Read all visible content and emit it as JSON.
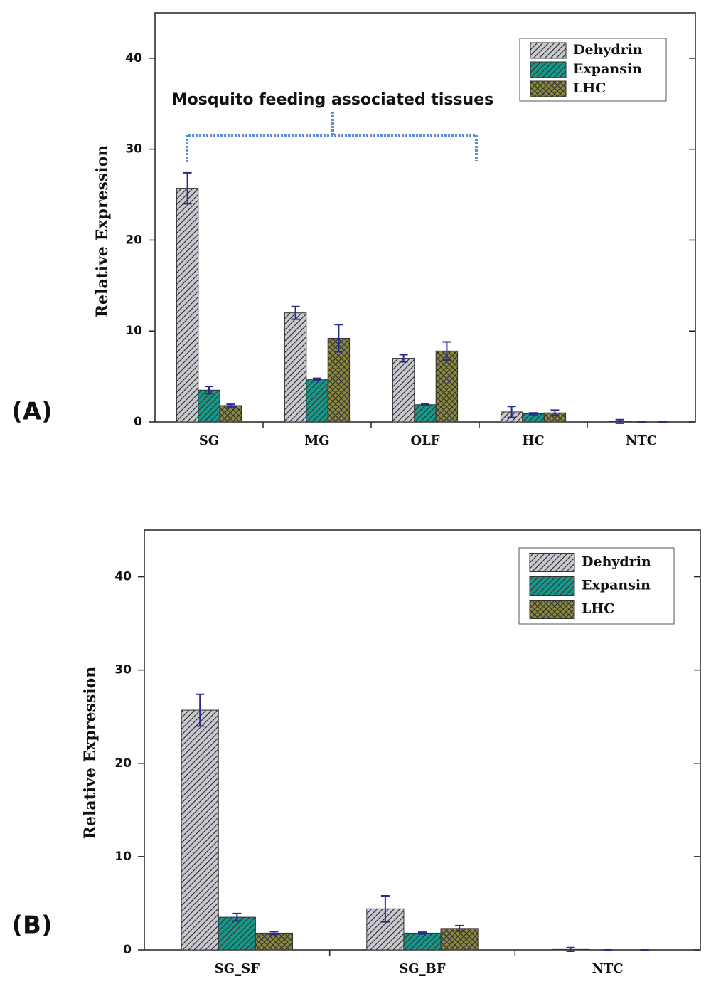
{
  "chart_data": [
    {
      "type": "bar",
      "label": "(A)",
      "ylabel": "Relative Expression",
      "annotation": "Mosquito feeding associated tissues",
      "categories": [
        "SG",
        "MG",
        "OLF",
        "HC",
        "NTC"
      ],
      "series": [
        {
          "name": "Dehydrin",
          "color": "#c9c9d1",
          "hatch": "diagonal",
          "values": [
            25.7,
            12.0,
            7.0,
            1.1,
            0.05
          ],
          "errors": [
            1.7,
            0.7,
            0.4,
            0.6,
            0.2
          ]
        },
        {
          "name": "Expansin",
          "color": "#17998a",
          "hatch": "diagonal",
          "values": [
            3.5,
            4.7,
            1.9,
            0.9,
            0
          ],
          "errors": [
            0.4,
            0.1,
            0.1,
            0.1,
            0
          ]
        },
        {
          "name": "LHC",
          "color": "#8c8a3c",
          "hatch": "cross",
          "values": [
            1.8,
            9.2,
            7.8,
            1.0,
            0
          ],
          "errors": [
            0.15,
            1.5,
            1.0,
            0.3,
            0
          ]
        }
      ],
      "ylim": [
        0,
        45
      ],
      "yticks": [
        0,
        10,
        20,
        30,
        40
      ],
      "legend": "upper right"
    },
    {
      "type": "bar",
      "label": "(B)",
      "ylabel": "Relative Expression",
      "categories": [
        "SG_SF",
        "SG_BF",
        "NTC"
      ],
      "series": [
        {
          "name": "Dehydrin",
          "color": "#c9c9d1",
          "hatch": "diagonal",
          "values": [
            25.7,
            4.4,
            0.05
          ],
          "errors": [
            1.7,
            1.4,
            0.2
          ]
        },
        {
          "name": "Expansin",
          "color": "#17998a",
          "hatch": "diagonal",
          "values": [
            3.5,
            1.8,
            0
          ],
          "errors": [
            0.4,
            0.1,
            0
          ]
        },
        {
          "name": "LHC",
          "color": "#8c8a3c",
          "hatch": "cross",
          "values": [
            1.8,
            2.3,
            0
          ],
          "errors": [
            0.15,
            0.3,
            0
          ]
        }
      ],
      "ylim": [
        0,
        45
      ],
      "yticks": [
        0,
        10,
        20,
        30,
        40
      ],
      "legend": "upper right"
    }
  ]
}
